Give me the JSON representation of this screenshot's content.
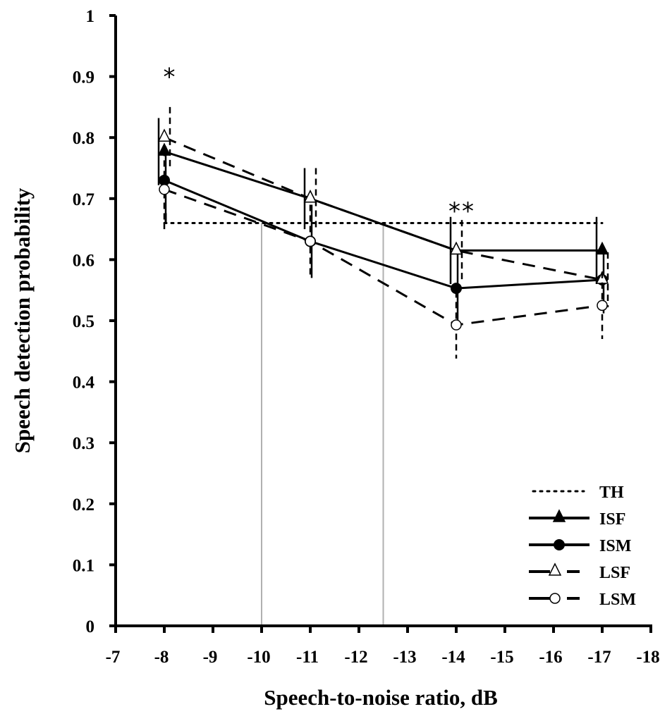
{
  "chart_data": {
    "type": "line",
    "title": "",
    "xlabel": "Speech-to-noise ratio, dB",
    "ylabel": "Speech detection probability",
    "xlim": [
      -7,
      -18
    ],
    "ylim": [
      0,
      1
    ],
    "x_ticks": [
      "-7",
      "-8",
      "-9",
      "-10",
      "-11",
      "-12",
      "-13",
      "-14",
      "-15",
      "-16",
      "-17",
      "-18"
    ],
    "y_ticks": [
      "0",
      "0.1",
      "0.2",
      "0.3",
      "0.4",
      "0.5",
      "0.6",
      "0.7",
      "0.8",
      "0.9",
      "1"
    ],
    "grid": false,
    "x": [
      -8,
      -11,
      -14,
      -17
    ],
    "series": [
      {
        "name": "TH",
        "style": "dotted",
        "marker": "none",
        "values": [
          0.66,
          0.66,
          0.66,
          0.66
        ]
      },
      {
        "name": "ISF",
        "style": "solid",
        "marker": "filled-triangle",
        "values": [
          0.777,
          0.7,
          0.615,
          0.615
        ],
        "error": [
          0.055,
          0.05,
          0.055,
          0.055
        ]
      },
      {
        "name": "ISM",
        "style": "solid",
        "marker": "filled-circle",
        "values": [
          0.73,
          0.63,
          0.553,
          0.567
        ],
        "error": [
          0.055,
          0.06,
          0.06,
          0.055
        ]
      },
      {
        "name": "LSF",
        "style": "dashed",
        "marker": "open-triangle",
        "values": [
          0.8,
          0.7,
          0.615,
          0.567
        ],
        "error": [
          0.05,
          0.05,
          0.05,
          0.045
        ]
      },
      {
        "name": "LSM",
        "style": "dashed",
        "marker": "open-circle",
        "values": [
          0.715,
          0.63,
          0.493,
          0.525
        ],
        "error": [
          0.065,
          0.06,
          0.055,
          0.055
        ]
      }
    ],
    "reference_lines_x": [
      -10,
      -12.5
    ],
    "annotations": [
      {
        "text": "*",
        "x": -8
      },
      {
        "text": "**",
        "x": -14
      }
    ],
    "legend": {
      "position": "bottom-right",
      "entries": [
        "TH",
        "ISF",
        "ISM",
        "LSF",
        "LSM"
      ]
    }
  }
}
